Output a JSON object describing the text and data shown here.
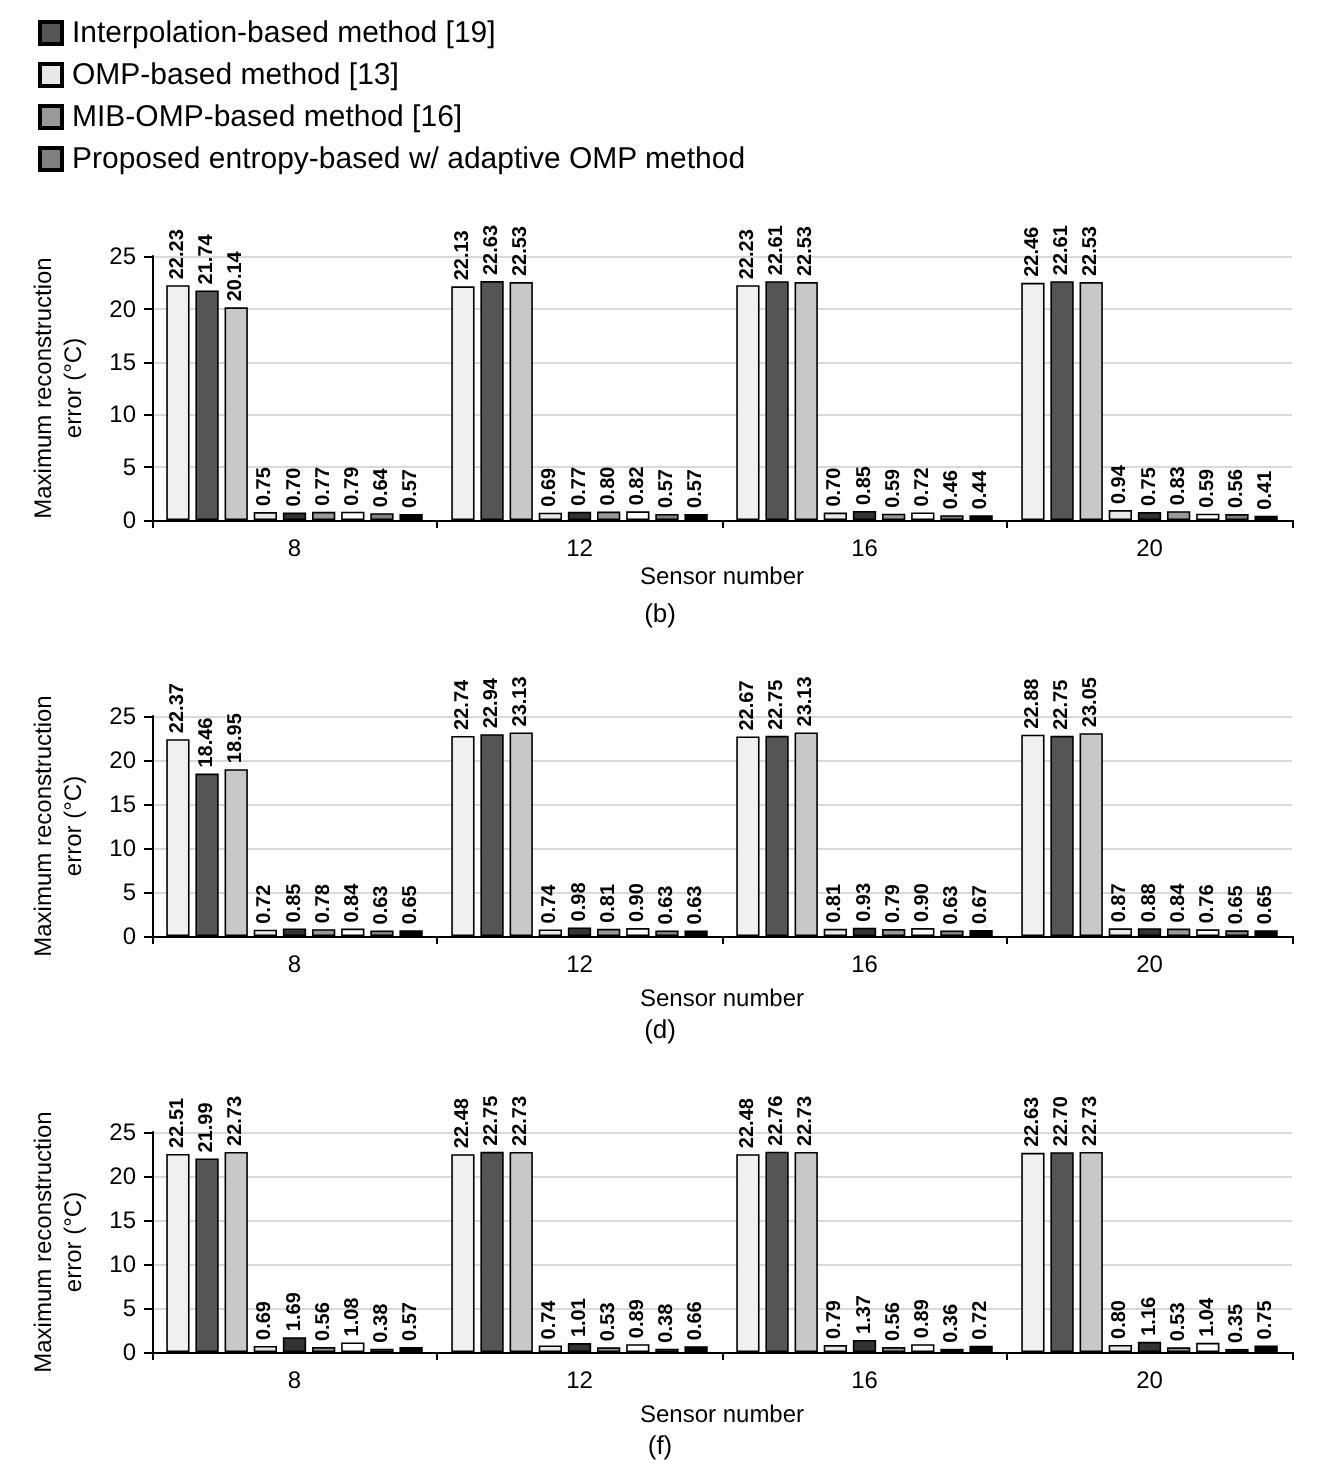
{
  "chart_data": [
    {
      "type": "bar",
      "title": "(b)",
      "xlabel": "Sensor number",
      "ylabel": "Maximum reconstruction error (°C)",
      "categories": [
        "8",
        "12",
        "16",
        "20"
      ],
      "ylim": [
        0,
        25
      ],
      "yticks": [
        0,
        5,
        10,
        15,
        20,
        25
      ],
      "grid": "y",
      "legend": "top left",
      "series": [
        {
          "color": "#f0f0f0",
          "values": [
            22.23,
            22.13,
            22.23,
            22.46
          ],
          "value_labels": [
            "22.23",
            "22.13",
            "22.23",
            "22.46"
          ]
        },
        {
          "name": "Interpolation-based method [19]",
          "color": "#555555",
          "values": [
            21.74,
            22.63,
            22.61,
            22.61
          ],
          "value_labels": [
            "21.74",
            "22.63",
            "22.61",
            "22.61"
          ]
        },
        {
          "color": "#c8c8c8",
          "values": [
            20.14,
            22.53,
            22.53,
            22.53
          ],
          "value_labels": [
            "20.14",
            "22.53",
            "22.53",
            "22.53"
          ]
        },
        {
          "name": "OMP-based method [13]",
          "color": "#e8e8e8",
          "values": [
            0.75,
            0.69,
            0.7,
            0.94
          ],
          "value_labels": [
            "0.75",
            "0.69",
            "0.70",
            "0.94"
          ]
        },
        {
          "color": "#333333",
          "values": [
            0.7,
            0.77,
            0.85,
            0.75
          ],
          "value_labels": [
            "0.70",
            "0.77",
            "0.85",
            "0.75"
          ]
        },
        {
          "name": "MIB-OMP-based method [16]",
          "color": "#999999",
          "values": [
            0.77,
            0.8,
            0.59,
            0.83
          ],
          "value_labels": [
            "0.77",
            "0.80",
            "0.59",
            "0.83"
          ]
        },
        {
          "color": "#ffffff",
          "values": [
            0.79,
            0.82,
            0.72,
            0.59
          ],
          "value_labels": [
            "0.79",
            "0.82",
            "0.72",
            "0.59"
          ]
        },
        {
          "name": "Proposed entropy-based w/ adaptive OMP method",
          "color": "#808080",
          "values": [
            0.64,
            0.57,
            0.46,
            0.56
          ],
          "value_labels": [
            "0.64",
            "0.57",
            "0.46",
            "0.56"
          ]
        },
        {
          "color": "#000000",
          "values": [
            0.57,
            0.57,
            0.44,
            0.41
          ],
          "value_labels": [
            "0.57",
            "0.57",
            "0.44",
            "0.41"
          ]
        }
      ]
    },
    {
      "type": "bar",
      "title": "(d)",
      "xlabel": "Sensor number",
      "ylabel": "Maximum reconstruction error (°C)",
      "categories": [
        "8",
        "12",
        "16",
        "20"
      ],
      "ylim": [
        0,
        25
      ],
      "yticks": [
        0,
        5,
        10,
        15,
        20,
        25
      ],
      "grid": "y",
      "series": [
        {
          "color": "#f0f0f0",
          "values": [
            22.37,
            22.74,
            22.67,
            22.88
          ],
          "value_labels": [
            "22.37",
            "22.74",
            "22.67",
            "22.88"
          ]
        },
        {
          "color": "#555555",
          "values": [
            18.46,
            22.94,
            22.75,
            22.75
          ],
          "value_labels": [
            "18.46",
            "22.94",
            "22.75",
            "22.75"
          ]
        },
        {
          "color": "#c8c8c8",
          "values": [
            18.95,
            23.13,
            23.13,
            23.05
          ],
          "value_labels": [
            "18.95",
            "23.13",
            "23.13",
            "23.05"
          ]
        },
        {
          "color": "#e8e8e8",
          "values": [
            0.72,
            0.74,
            0.81,
            0.87
          ],
          "value_labels": [
            "0.72",
            "0.74",
            "0.81",
            "0.87"
          ]
        },
        {
          "color": "#333333",
          "values": [
            0.85,
            0.98,
            0.93,
            0.88
          ],
          "value_labels": [
            "0.85",
            "0.98",
            "0.93",
            "0.88"
          ]
        },
        {
          "color": "#999999",
          "values": [
            0.78,
            0.81,
            0.79,
            0.84
          ],
          "value_labels": [
            "0.78",
            "0.81",
            "0.79",
            "0.84"
          ]
        },
        {
          "color": "#ffffff",
          "values": [
            0.84,
            0.9,
            0.9,
            0.76
          ],
          "value_labels": [
            "0.84",
            "0.90",
            "0.90",
            "0.76"
          ]
        },
        {
          "color": "#808080",
          "values": [
            0.63,
            0.63,
            0.63,
            0.65
          ],
          "value_labels": [
            "0.63",
            "0.63",
            "0.63",
            "0.65"
          ]
        },
        {
          "color": "#000000",
          "values": [
            0.65,
            0.63,
            0.67,
            0.65
          ],
          "value_labels": [
            "0.65",
            "0.63",
            "0.67",
            "0.65"
          ]
        }
      ]
    },
    {
      "type": "bar",
      "title": "(f)",
      "xlabel": "Sensor number",
      "ylabel": "Maximum reconstruction error (°C)",
      "categories": [
        "8",
        "12",
        "16",
        "20"
      ],
      "ylim": [
        0,
        25
      ],
      "yticks": [
        0,
        5,
        10,
        15,
        20,
        25
      ],
      "grid": "y",
      "series": [
        {
          "color": "#f0f0f0",
          "values": [
            22.51,
            22.48,
            22.48,
            22.63
          ],
          "value_labels": [
            "22.51",
            "22.48",
            "22.48",
            "22.63"
          ]
        },
        {
          "color": "#555555",
          "values": [
            21.99,
            22.75,
            22.76,
            22.7
          ],
          "value_labels": [
            "21.99",
            "22.75",
            "22.76",
            "22.70"
          ]
        },
        {
          "color": "#c8c8c8",
          "values": [
            22.73,
            22.73,
            22.73,
            22.73
          ],
          "value_labels": [
            "22.73",
            "22.73",
            "22.73",
            "22.73"
          ]
        },
        {
          "color": "#e8e8e8",
          "values": [
            0.69,
            0.74,
            0.79,
            0.8
          ],
          "value_labels": [
            "0.69",
            "0.74",
            "0.79",
            "0.80"
          ]
        },
        {
          "color": "#333333",
          "values": [
            1.69,
            1.01,
            1.37,
            1.16
          ],
          "value_labels": [
            "1.69",
            "1.01",
            "1.37",
            "1.16"
          ]
        },
        {
          "color": "#999999",
          "values": [
            0.56,
            0.53,
            0.56,
            0.53
          ],
          "value_labels": [
            "0.56",
            "0.53",
            "0.56",
            "0.53"
          ]
        },
        {
          "color": "#ffffff",
          "values": [
            1.08,
            0.89,
            0.89,
            1.04
          ],
          "value_labels": [
            "1.08",
            "0.89",
            "0.89",
            "1.04"
          ]
        },
        {
          "color": "#808080",
          "values": [
            0.38,
            0.38,
            0.36,
            0.35
          ],
          "value_labels": [
            "0.38",
            "0.38",
            "0.36",
            "0.35"
          ]
        },
        {
          "color": "#000000",
          "values": [
            0.57,
            0.66,
            0.72,
            0.75
          ],
          "value_labels": [
            "0.57",
            "0.66",
            "0.72",
            "0.75"
          ]
        }
      ]
    }
  ]
}
